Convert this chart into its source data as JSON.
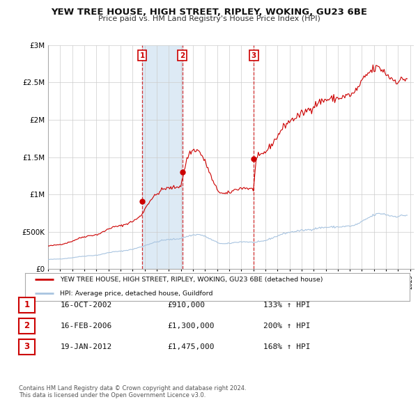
{
  "title": "YEW TREE HOUSE, HIGH STREET, RIPLEY, WOKING, GU23 6BE",
  "subtitle": "Price paid vs. HM Land Registry's House Price Index (HPI)",
  "ylim": [
    0,
    3000000
  ],
  "yticks": [
    0,
    500000,
    1000000,
    1500000,
    2000000,
    2500000,
    3000000
  ],
  "ytick_labels": [
    "£0",
    "£500K",
    "£1M",
    "£1.5M",
    "£2M",
    "£2.5M",
    "£3M"
  ],
  "xmin": 1995,
  "xmax": 2025.3,
  "hpi_color": "#a8c4e0",
  "price_color": "#cc0000",
  "vline_color": "#cc0000",
  "fill_color": "#ddeaf5",
  "background_color": "#ffffff",
  "grid_color": "#cccccc",
  "sale_points": [
    {
      "label": "1",
      "year": 2002.79,
      "price": 910000,
      "date": "16-OCT-2002",
      "pct": "133% ↑ HPI"
    },
    {
      "label": "2",
      "year": 2006.12,
      "price": 1300000,
      "date": "16-FEB-2006",
      "pct": "200% ↑ HPI"
    },
    {
      "label": "3",
      "year": 2012.05,
      "price": 1475000,
      "date": "19-JAN-2012",
      "pct": "168% ↑ HPI"
    }
  ],
  "legend_price_label": "YEW TREE HOUSE, HIGH STREET, RIPLEY, WOKING, GU23 6BE (detached house)",
  "legend_hpi_label": "HPI: Average price, detached house, Guildford",
  "footer1": "Contains HM Land Registry data © Crown copyright and database right 2024.",
  "footer2": "This data is licensed under the Open Government Licence v3.0.",
  "table_rows": [
    {
      "num": "1",
      "date": "16-OCT-2002",
      "price": "£910,000",
      "pct": "133% ↑ HPI"
    },
    {
      "num": "2",
      "date": "16-FEB-2006",
      "price": "£1,300,000",
      "pct": "200% ↑ HPI"
    },
    {
      "num": "3",
      "date": "19-JAN-2012",
      "price": "£1,475,000",
      "pct": "168% ↑ HPI"
    }
  ]
}
